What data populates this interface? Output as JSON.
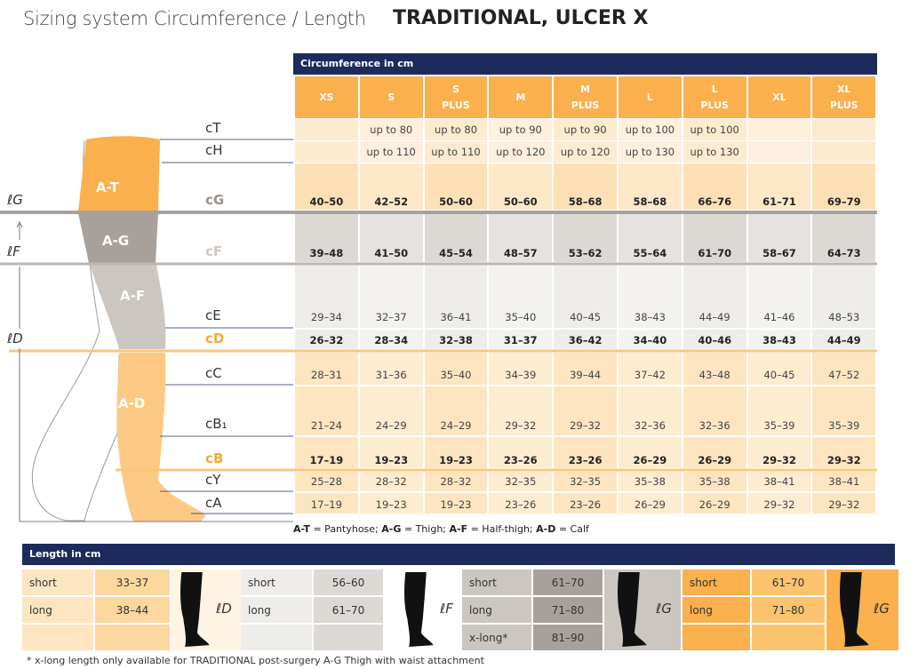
{
  "header": {
    "title": "Sizing system Circumference / Length",
    "product": "TRADITIONAL, ULCER X"
  },
  "circumference": {
    "heading": "Circumference in cm",
    "sizes": [
      [
        "XS"
      ],
      [
        "S"
      ],
      [
        "S",
        "PLUS"
      ],
      [
        "M"
      ],
      [
        "M",
        "PLUS"
      ],
      [
        "L"
      ],
      [
        "L",
        "PLUS"
      ],
      [
        "XL"
      ],
      [
        "XL",
        "PLUS"
      ]
    ],
    "rows": [
      {
        "label": "cT",
        "values": [
          null,
          "up to 80",
          "up to 80",
          "up to 90",
          "up to 90",
          "up to 100",
          "up to 100",
          null,
          null
        ]
      },
      {
        "label": "cH",
        "values": [
          null,
          "up to 110",
          "up to 110",
          "up to 120",
          "up to 120",
          "up to 130",
          "up to 130",
          null,
          null
        ]
      },
      {
        "label": "cG",
        "values": [
          "40–50",
          "42–52",
          "50–60",
          "50–60",
          "58–68",
          "58–68",
          "66–76",
          "61–71",
          "69–79"
        ]
      },
      {
        "label": "cF",
        "values": [
          "39–48",
          "41–50",
          "45–54",
          "48–57",
          "53–62",
          "55–64",
          "61–70",
          "58–67",
          "64–73"
        ]
      },
      {
        "label": "cE",
        "values": [
          "29–34",
          "32–37",
          "36–41",
          "35–40",
          "40–45",
          "38–43",
          "44–49",
          "41–46",
          "48–53"
        ]
      },
      {
        "label": "cD",
        "values": [
          "26–32",
          "28–34",
          "32–38",
          "31–37",
          "36–42",
          "34–40",
          "40–46",
          "38–43",
          "44–49"
        ]
      },
      {
        "label": "cC",
        "values": [
          "28–31",
          "31–36",
          "35–40",
          "34–39",
          "39–44",
          "37–42",
          "43–48",
          "40–45",
          "47–52"
        ]
      },
      {
        "label": "cB₁",
        "values": [
          "21–24",
          "24–29",
          "24–29",
          "29–32",
          "29–32",
          "32–36",
          "32–36",
          "35–39",
          "35–39"
        ]
      },
      {
        "label": "cB",
        "values": [
          "17–19",
          "19–23",
          "19–23",
          "23–26",
          "23–26",
          "26–29",
          "26–29",
          "29–32",
          "29–32"
        ]
      },
      {
        "label": "cY",
        "values": [
          "25–28",
          "28–32",
          "28–32",
          "32–35",
          "32–35",
          "35–38",
          "35–38",
          "38–41",
          "38–41"
        ]
      },
      {
        "label": "cA",
        "values": [
          "17–19",
          "19–23",
          "19–23",
          "23–26",
          "23–26",
          "26–29",
          "26–29",
          "29–32",
          "29–32"
        ]
      }
    ]
  },
  "leg": {
    "zones": [
      "A-T",
      "A-G",
      "A-F",
      "A-D"
    ],
    "lengths": [
      "ℓG",
      "ℓF",
      "ℓD"
    ]
  },
  "legend": [
    {
      "code": "A-T",
      "text": "= Pantyhose;"
    },
    {
      "code": "A-G",
      "text": "= Thigh;"
    },
    {
      "code": "A-F",
      "text": "= Half-thigh;"
    },
    {
      "code": "A-D",
      "text": "= Calf"
    }
  ],
  "length": {
    "heading": "Length in cm",
    "groups": [
      {
        "marker": "ℓD",
        "rows": [
          {
            "label": "short",
            "value": "33–37"
          },
          {
            "label": "long",
            "value": "38–44"
          }
        ]
      },
      {
        "marker": "ℓF",
        "rows": [
          {
            "label": "short",
            "value": "56–60"
          },
          {
            "label": "long",
            "value": "61–70"
          }
        ]
      },
      {
        "marker": "ℓG",
        "rows": [
          {
            "label": "short",
            "value": "61–70"
          },
          {
            "label": "long",
            "value": "71–80"
          },
          {
            "label": "x-long*",
            "value": "81–90"
          }
        ]
      },
      {
        "marker": "ℓG",
        "rows": [
          {
            "label": "short",
            "value": "61–70"
          },
          {
            "label": "long",
            "value": "71–80"
          }
        ]
      }
    ]
  },
  "footnote": "* x-long length only available for TRADITIONAL post-surgery A-G Thigh with waist attachment"
}
